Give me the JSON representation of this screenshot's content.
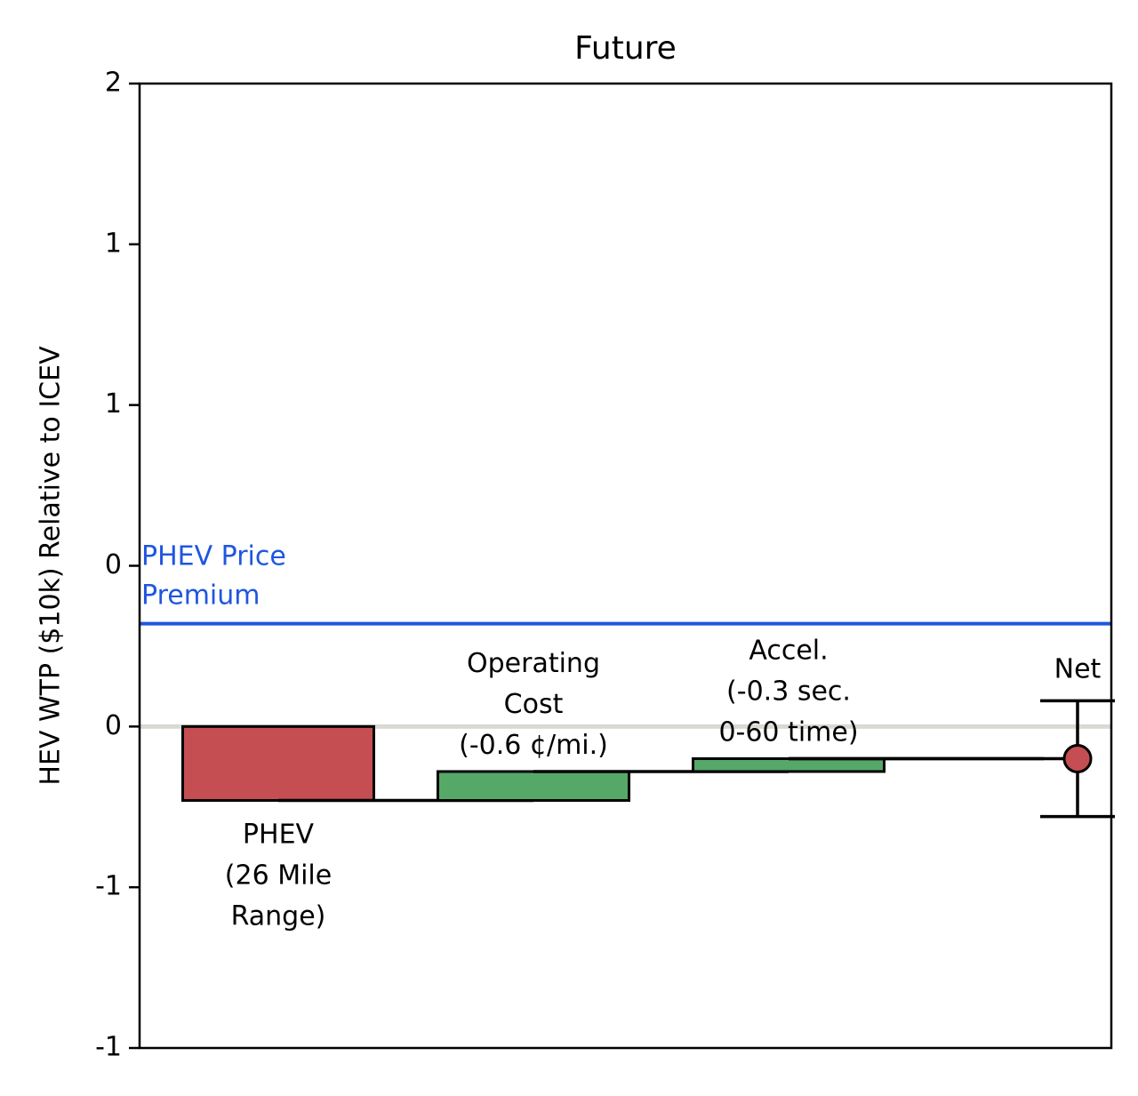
{
  "chart_data": {
    "type": "waterfall",
    "title": "Future",
    "ylabel": "HEV WTP ($10k) Relative to ICEV",
    "xlabel": "",
    "ylim": [
      -1.0,
      2.0
    ],
    "yticks": [
      -1.0,
      -0.5,
      0.0,
      0.5,
      1.0,
      1.5,
      2.0
    ],
    "ytick_labels": [
      "-1",
      "-1",
      "0",
      "0",
      "1",
      "1",
      "2"
    ],
    "steps": [
      {
        "id": "phev",
        "label": [
          "PHEV",
          "(26 Mile",
          "Range)"
        ],
        "start": 0.0,
        "end": -0.23,
        "color": "#c44e52",
        "label_position": "below"
      },
      {
        "id": "opcost",
        "label": [
          "Operating",
          "Cost",
          "(-0.6 ¢/mi.)"
        ],
        "start": -0.23,
        "end": -0.14,
        "color": "#55a868",
        "label_position": "above"
      },
      {
        "id": "accel",
        "label": [
          "Accel.",
          "(-0.3 sec.",
          "0-60 time)"
        ],
        "start": -0.14,
        "end": -0.1,
        "color": "#55a868",
        "label_position": "above"
      }
    ],
    "net": {
      "label": "Net",
      "value": -0.1,
      "error_low": -0.28,
      "error_high": 0.08,
      "color": "#c44e52"
    },
    "reference_lines": [
      {
        "id": "price-premium",
        "value": 0.32,
        "color": "#1f56e0",
        "label": [
          "PHEV Price",
          "Premium"
        ]
      },
      {
        "id": "zero",
        "value": 0.0,
        "color": "#d9d9d4"
      }
    ]
  }
}
